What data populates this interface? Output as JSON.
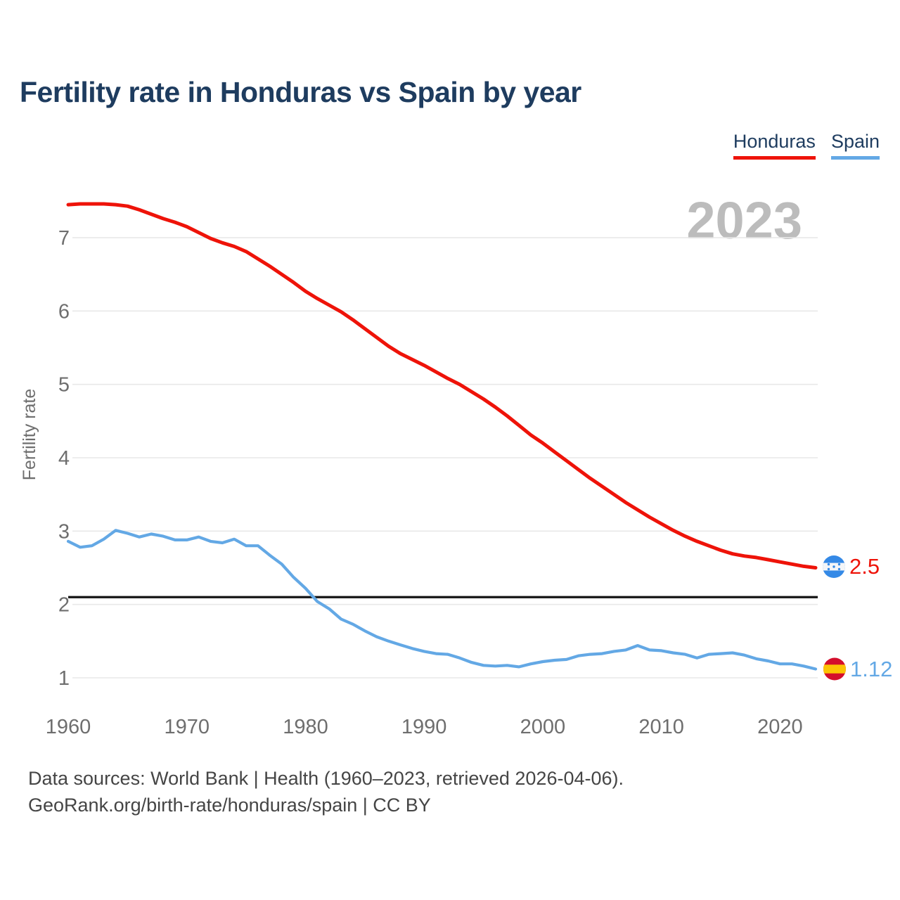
{
  "header": {
    "title": "Fertility rate in Honduras vs Spain by year"
  },
  "legend": {
    "items": [
      {
        "label": "Honduras",
        "color": "#ee1309"
      },
      {
        "label": "Spain",
        "color": "#63a8e5"
      }
    ]
  },
  "watermark": "2023",
  "chart_data": {
    "type": "line",
    "title": "Fertility rate in Honduras vs Spain by year",
    "xlabel": "",
    "ylabel": "Fertility rate",
    "xlim": [
      1960,
      2023
    ],
    "ylim": [
      0.8,
      7.6
    ],
    "xticks": [
      1960,
      1970,
      1980,
      1990,
      2000,
      2010,
      2020
    ],
    "yticks": [
      1,
      2,
      3,
      4,
      5,
      6,
      7
    ],
    "grid": "horizontal",
    "legend_position": "top-right",
    "reference_line": {
      "value": 2.1,
      "color": "#151515"
    },
    "x": [
      1960,
      1961,
      1962,
      1963,
      1964,
      1965,
      1966,
      1967,
      1968,
      1969,
      1970,
      1971,
      1972,
      1973,
      1974,
      1975,
      1976,
      1977,
      1978,
      1979,
      1980,
      1981,
      1982,
      1983,
      1984,
      1985,
      1986,
      1987,
      1988,
      1989,
      1990,
      1991,
      1992,
      1993,
      1994,
      1995,
      1996,
      1997,
      1998,
      1999,
      2000,
      2001,
      2002,
      2003,
      2004,
      2005,
      2006,
      2007,
      2008,
      2009,
      2010,
      2011,
      2012,
      2013,
      2014,
      2015,
      2016,
      2017,
      2018,
      2019,
      2020,
      2021,
      2022,
      2023
    ],
    "series": [
      {
        "name": "Honduras",
        "color": "#ee1309",
        "values": [
          7.45,
          7.46,
          7.46,
          7.46,
          7.45,
          7.43,
          7.38,
          7.32,
          7.26,
          7.21,
          7.15,
          7.07,
          6.99,
          6.93,
          6.88,
          6.81,
          6.71,
          6.61,
          6.5,
          6.39,
          6.27,
          6.17,
          6.08,
          5.99,
          5.88,
          5.76,
          5.64,
          5.52,
          5.42,
          5.34,
          5.26,
          5.17,
          5.08,
          5.0,
          4.9,
          4.8,
          4.69,
          4.57,
          4.44,
          4.31,
          4.2,
          4.08,
          3.96,
          3.84,
          3.72,
          3.61,
          3.5,
          3.39,
          3.29,
          3.19,
          3.1,
          3.01,
          2.93,
          2.86,
          2.8,
          2.74,
          2.69,
          2.66,
          2.64,
          2.61,
          2.58,
          2.55,
          2.52,
          2.5
        ]
      },
      {
        "name": "Spain",
        "color": "#63a8e5",
        "values": [
          2.86,
          2.78,
          2.8,
          2.89,
          3.01,
          2.97,
          2.92,
          2.96,
          2.93,
          2.88,
          2.88,
          2.92,
          2.86,
          2.84,
          2.89,
          2.8,
          2.8,
          2.67,
          2.55,
          2.37,
          2.22,
          2.04,
          1.94,
          1.8,
          1.73,
          1.64,
          1.56,
          1.5,
          1.45,
          1.4,
          1.36,
          1.33,
          1.32,
          1.27,
          1.21,
          1.17,
          1.16,
          1.17,
          1.15,
          1.19,
          1.22,
          1.24,
          1.25,
          1.3,
          1.32,
          1.33,
          1.36,
          1.38,
          1.44,
          1.38,
          1.37,
          1.34,
          1.32,
          1.27,
          1.32,
          1.33,
          1.34,
          1.31,
          1.26,
          1.23,
          1.19,
          1.19,
          1.16,
          1.12
        ]
      }
    ],
    "end_labels": [
      {
        "series": "Honduras",
        "value": "2.5",
        "flag": "honduras-flag"
      },
      {
        "series": "Spain",
        "value": "1.12",
        "flag": "spain-flag"
      }
    ]
  },
  "footer": {
    "line1": "Data sources: World Bank | Health (1960–2023, retrieved 2026-04-06).",
    "line2": "GeoRank.org/birth-rate/honduras/spain | CC BY"
  }
}
